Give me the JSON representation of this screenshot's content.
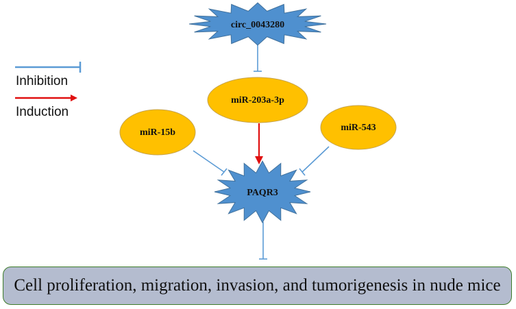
{
  "legend": {
    "inhibition_label": "Inhibition",
    "induction_label": "Induction"
  },
  "nodes": {
    "circ": "circ_0043280",
    "mir203": "miR-203a-3p",
    "mir15b": "miR-15b",
    "mir543": "miR-543",
    "paqr3": "PAQR3"
  },
  "outcome": "Cell proliferation, migration, invasion, and tumorigenesis in nude mice",
  "colors": {
    "star_fill": "#4f90cf",
    "star_stroke": "#41719c",
    "ellipse_fill": "#ffc000",
    "ellipse_stroke": "#c5a24a",
    "inhibition": "#5b9bd5",
    "induction": "#e01010",
    "box_fill": "#b4bccf",
    "box_border": "#3e7c2a"
  }
}
